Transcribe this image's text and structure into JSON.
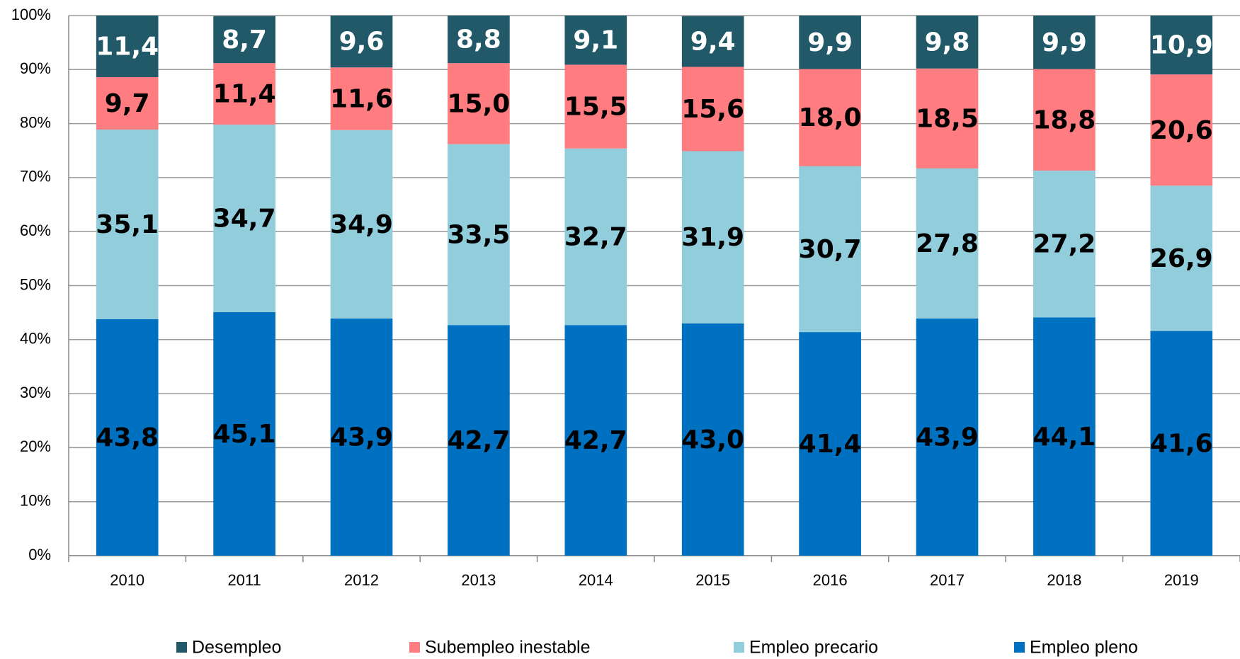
{
  "chart_data": {
    "type": "stacked-bar",
    "categories": [
      "2010",
      "2011",
      "2012",
      "2013",
      "2014",
      "2015",
      "2016",
      "2017",
      "2018",
      "2019"
    ],
    "series": [
      {
        "name": "Desempleo",
        "color": "#215968",
        "values": [
          11.4,
          8.7,
          9.6,
          8.8,
          9.1,
          9.4,
          9.9,
          9.8,
          9.9,
          10.9
        ],
        "value_labels": [
          "11,4",
          "8,7",
          "9,6",
          "8,8",
          "9,1",
          "9,4",
          "9,9",
          "9,8",
          "9,9",
          "10,9"
        ]
      },
      {
        "name": "Subempleo inestable",
        "color": "#FF7C80",
        "values": [
          9.7,
          11.4,
          11.6,
          15.0,
          15.5,
          15.6,
          18.0,
          18.5,
          18.8,
          20.6
        ],
        "value_labels": [
          "9,7",
          "11,4",
          "11,6",
          "15,0",
          "15,5",
          "15,6",
          "18,0",
          "18,5",
          "18,8",
          "20,6"
        ]
      },
      {
        "name": "Empleo precario",
        "color": "#92CDDC",
        "values": [
          35.1,
          34.7,
          34.9,
          33.5,
          32.7,
          31.9,
          30.7,
          27.8,
          27.2,
          26.9
        ],
        "value_labels": [
          "35,1",
          "34,7",
          "34,9",
          "33,5",
          "32,7",
          "31,9",
          "30,7",
          "27,8",
          "27,2",
          "26,9"
        ]
      },
      {
        "name": "Empleo pleno",
        "color": "#0070C0",
        "values": [
          43.8,
          45.1,
          43.9,
          42.7,
          42.7,
          43.0,
          41.4,
          43.9,
          44.1,
          41.6
        ],
        "value_labels": [
          "43,8",
          "45,1",
          "43,9",
          "42,7",
          "42,7",
          "43,0",
          "41,4",
          "43,9",
          "44,1",
          "41,6"
        ]
      }
    ],
    "ylim": [
      0,
      100
    ],
    "yticks": [
      {
        "value": 0,
        "label": "0%"
      },
      {
        "value": 10,
        "label": "10%"
      },
      {
        "value": 20,
        "label": "20%"
      },
      {
        "value": 30,
        "label": "30%"
      },
      {
        "value": 40,
        "label": "40%"
      },
      {
        "value": 50,
        "label": "50%"
      },
      {
        "value": 60,
        "label": "60%"
      },
      {
        "value": 70,
        "label": "70%"
      },
      {
        "value": 80,
        "label": "80%"
      },
      {
        "value": 90,
        "label": "90%"
      },
      {
        "value": 100,
        "label": "100%"
      }
    ],
    "grid": true,
    "legend": "bottom"
  }
}
